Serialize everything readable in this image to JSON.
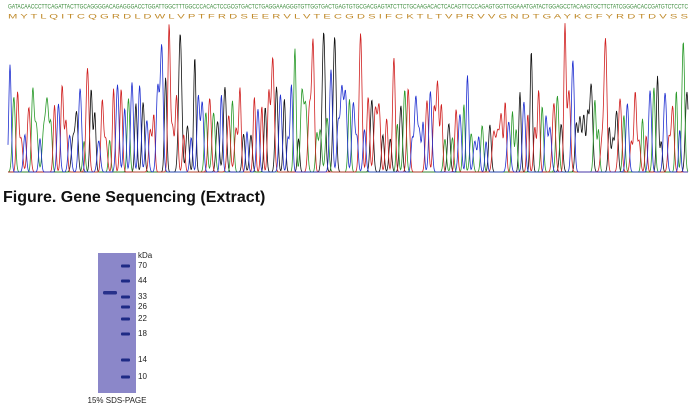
{
  "sequencing": {
    "dna": "GATACAACCCTTCAGATTACTTGCAGGGGACAGAGGGACCTGGATTGGCTTTGGCCCACACTCCGCGTGACTCTGAGGAAAGGGTGTTGGTGACTGAGTGTGCGACGAGTATCTTCTGCAAGACACTCACAGTTCCCAGAGTGGTTGGAAATGATACTGGAGCCTACAAGTGCTTCTATCGGGACACCGATGTCTCCTC",
    "protein": "M Y T L Q I T C Q G R D L D W L V P T F R D S E E R V L V T E C G D S I F C K T L T V P R V V G N D T G A Y K C F Y R D T D V S S",
    "caption": "Figure. Gene Sequencing (Extract)"
  },
  "gel": {
    "unit": "kDa",
    "markers": [
      "70",
      "44",
      "33",
      "26",
      "22",
      "18",
      "14",
      "10"
    ],
    "caption": "15% SDS-PAGE"
  }
}
